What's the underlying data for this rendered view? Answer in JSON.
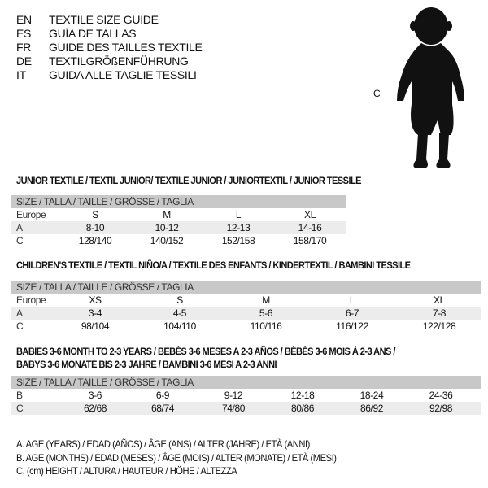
{
  "header": {
    "languages": [
      {
        "code": "EN",
        "text": "TEXTILE SIZE GUIDE"
      },
      {
        "code": "ES",
        "text": "GUÍA DE TALLAS"
      },
      {
        "code": "FR",
        "text": "GUIDE DES TAILLES TEXTILE"
      },
      {
        "code": "DE",
        "text": "TEXTILGRÖßENFÜHRUNG"
      },
      {
        "code": "IT",
        "text": "GUIDA ALLE TAGLIE TESSILI"
      }
    ]
  },
  "figure": {
    "height_label": "C",
    "icon": "baby-silhouette"
  },
  "tables": [
    {
      "title": [
        "JUNIOR TEXTILE / TEXTIL JUNIOR/ TEXTILE JUNIOR / JUNIORTEXTIL / JUNIOR TESSILE"
      ],
      "header": "SIZE / TALLA / TAILLE / GRÖSSE / TAGLIA",
      "rows": [
        {
          "label": "Europe",
          "values": [
            "S",
            "M",
            "L",
            "XL"
          ]
        },
        {
          "label": "A",
          "values": [
            "8-10",
            "10-12",
            "12-13",
            "14-16"
          ]
        },
        {
          "label": "C",
          "values": [
            "128/140",
            "140/152",
            "152/158",
            "158/170"
          ]
        }
      ]
    },
    {
      "title": [
        "CHILDREN'S TEXTILE / TEXTIL NIÑO/A / TEXTILE DES ENFANTS / KINDERTEXTIL / BAMBINI TESSILE"
      ],
      "header": "SIZE / TALLA / TAILLE / GRÖSSE / TAGLIA",
      "rows": [
        {
          "label": "Europe",
          "values": [
            "XS",
            "S",
            "M",
            "L",
            "XL"
          ]
        },
        {
          "label": "A",
          "values": [
            "3-4",
            "4-5",
            "5-6",
            "6-7",
            "7-8"
          ]
        },
        {
          "label": "C",
          "values": [
            "98/104",
            "104/110",
            "110/116",
            "116/122",
            "122/128"
          ]
        }
      ]
    },
    {
      "title": [
        "BABIES 3-6 MONTH TO 2-3 YEARS / BEBÉS 3-6 MESES A 2-3 AÑOS / BÉBÉS 3-6 MOIS À 2-3 ANS /",
        "BABYS 3-6 MONATE BIS 2-3 JAHRE / BAMBINI 3-6 MESI A 2-3 ANNI"
      ],
      "header": "SIZE / TALLA / TAILLE / GRÖSSE / TAGLIA",
      "rows": [
        {
          "label": "B",
          "values": [
            "3-6",
            "6-9",
            "9-12",
            "12-18",
            "18-24",
            "24-36"
          ]
        },
        {
          "label": "C",
          "values": [
            "62/68",
            "68/74",
            "74/80",
            "80/86",
            "86/92",
            "92/98"
          ]
        }
      ]
    }
  ],
  "legend": [
    "A. AGE (YEARS) / EDAD (AÑOS) / ÂGE (ANS) / ALTER (JAHRE) / ETÀ (ANNI)",
    "B. AGE (MONTHS) / EDAD (MESES) / ÂGE (MOIS) / ALTER (MONATE) / ETÀ (MESI)",
    "C. (cm) HEIGHT / ALTURA / HAUTEUR / HÖHE / ALTEZZA"
  ]
}
